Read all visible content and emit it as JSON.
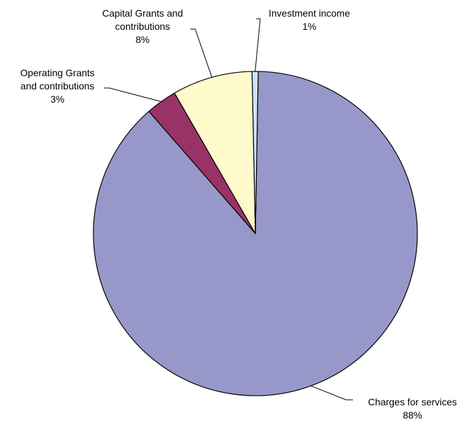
{
  "chart_data": {
    "type": "pie",
    "title": "",
    "start_angle_deg": 1,
    "direction": "clockwise",
    "slices": [
      {
        "name": "Charges for services",
        "label_lines": [
          "Charges for services"
        ],
        "percent_label": "88%",
        "value": 88.3,
        "color": "#9797C9"
      },
      {
        "name": "Operating Grants and contributions",
        "label_lines": [
          "Operating Grants",
          "and contributions"
        ],
        "percent_label": "3%",
        "value": 3.1,
        "color": "#993366"
      },
      {
        "name": "Capital Grants and contributions",
        "label_lines": [
          "Capital Grants and",
          "contributions"
        ],
        "percent_label": "8%",
        "value": 8.0,
        "color": "#FFFACC"
      },
      {
        "name": "Investment income",
        "label_lines": [
          "Investment income"
        ],
        "percent_label": "1%",
        "value": 0.6,
        "color": "#CCE5F7"
      }
    ]
  }
}
